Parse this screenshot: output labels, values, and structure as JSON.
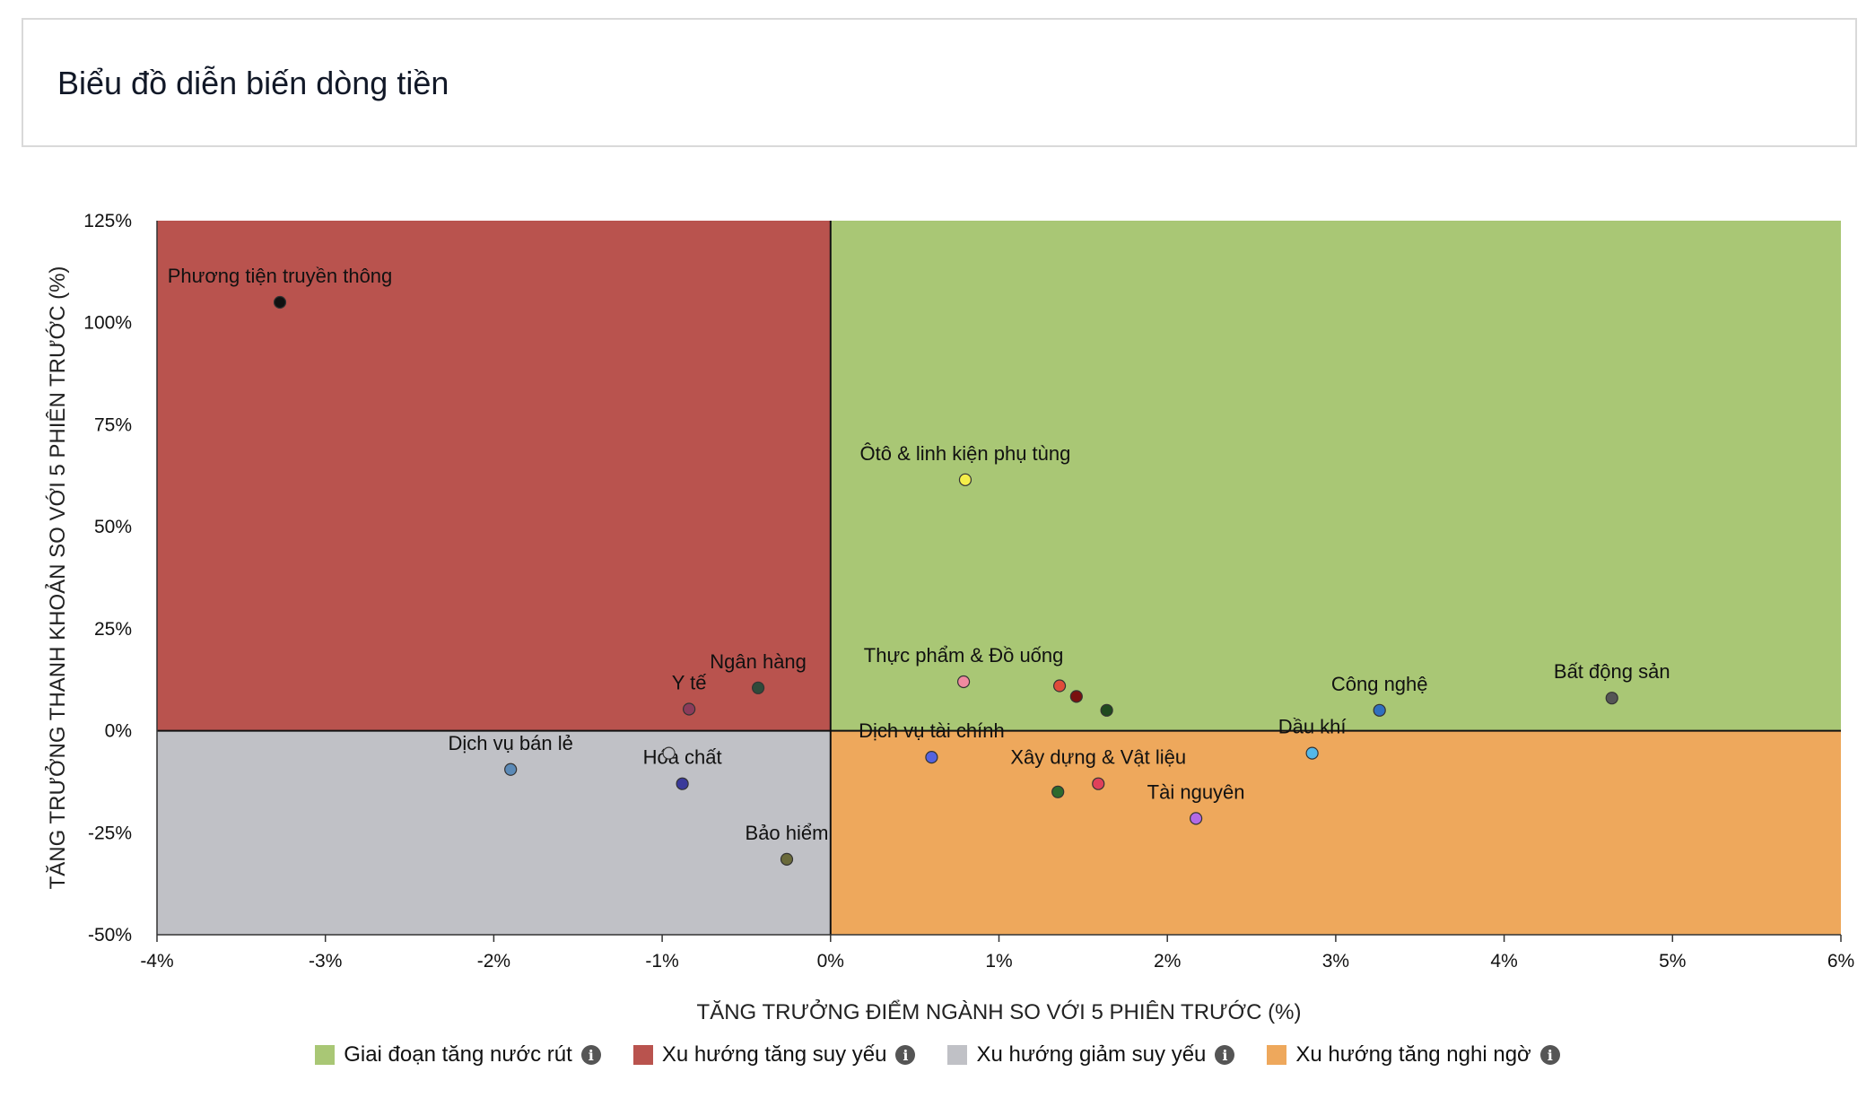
{
  "header": {
    "title": "Biểu đồ diễn biến dòng tiền"
  },
  "chart_data": {
    "type": "scatter",
    "title": "",
    "xlabel": "TĂNG TRƯỞNG ĐIỂM NGÀNH SO VỚI 5 PHIÊN TRƯỚC (%)",
    "ylabel": "TĂNG TRƯỞNG THANH KHOẢN SO VỚI 5 PHIÊN TRƯỚC (%)",
    "xlim": [
      -4,
      6
    ],
    "ylim": [
      -50,
      125
    ],
    "x_ticks": [
      -4,
      -3,
      -2,
      -1,
      0,
      1,
      2,
      3,
      4,
      5,
      6
    ],
    "y_ticks": [
      -50,
      -25,
      0,
      25,
      50,
      75,
      100,
      125
    ],
    "x_tick_labels": [
      "-4%",
      "-3%",
      "-2%",
      "-1%",
      "0%",
      "1%",
      "2%",
      "3%",
      "4%",
      "5%",
      "6%"
    ],
    "y_tick_labels": [
      "-50%",
      "-25%",
      "0%",
      "25%",
      "50%",
      "75%",
      "100%",
      "125%"
    ],
    "quadrants": [
      {
        "name": "Giai đoạn tăng nước rút",
        "region": "top-right",
        "color": "#a9c775"
      },
      {
        "name": "Xu hướng tăng suy yếu",
        "region": "top-left",
        "color": "#b9534e"
      },
      {
        "name": "Xu hướng giảm suy yếu",
        "region": "bottom-left",
        "color": "#c0c1c6"
      },
      {
        "name": "Xu hướng tăng nghi ngờ",
        "region": "bottom-right",
        "color": "#eea85c"
      }
    ],
    "points": [
      {
        "label": "Phương tiện truyền thông",
        "x": -3.27,
        "y": 105,
        "color": "#111111",
        "show_label": true
      },
      {
        "label": "Ôtô & linh kiện phụ tùng",
        "x": 0.8,
        "y": 61.5,
        "color": "#f4ee4a",
        "show_label": true
      },
      {
        "label": "Ngân hàng",
        "x": -0.43,
        "y": 10.5,
        "color": "#2f4a3a",
        "show_label": true
      },
      {
        "label": "Y tế",
        "x": -0.84,
        "y": 5.3,
        "color": "#8b3b5a",
        "show_label": true
      },
      {
        "label": "Dịch vụ bán lẻ",
        "x": -1.9,
        "y": -9.5,
        "color": "#5b8ab7",
        "show_label": true
      },
      {
        "label": "Hóa chất",
        "x": -0.88,
        "y": -13,
        "color": "#3a3a9a",
        "show_label": true
      },
      {
        "label": "",
        "x": -0.96,
        "y": -5.5,
        "color": "#c0c1c6",
        "show_label": false
      },
      {
        "label": "Bảo hiểm",
        "x": -0.26,
        "y": -31.5,
        "color": "#6a6a3a",
        "show_label": true
      },
      {
        "label": "Thực phẩm & Đồ uống",
        "x": 0.79,
        "y": 12,
        "color": "#f08aa0",
        "show_label": true
      },
      {
        "label": "",
        "x": 1.36,
        "y": 11,
        "color": "#e04b3a",
        "show_label": false
      },
      {
        "label": "",
        "x": 1.46,
        "y": 8.4,
        "color": "#7a1010",
        "show_label": false
      },
      {
        "label": "",
        "x": 1.64,
        "y": 5,
        "color": "#1f4a1f",
        "show_label": false
      },
      {
        "label": "Dịch vụ tài chính",
        "x": 0.6,
        "y": -6.5,
        "color": "#5563e0",
        "show_label": true
      },
      {
        "label": "Xây dựng & Vật liệu",
        "x": 1.59,
        "y": -13,
        "color": "#e0405a",
        "show_label": true
      },
      {
        "label": "",
        "x": 1.35,
        "y": -15,
        "color": "#2d6a2d",
        "show_label": false
      },
      {
        "label": "Tài nguyên",
        "x": 2.17,
        "y": -21.5,
        "color": "#b26ae6",
        "show_label": true
      },
      {
        "label": "Dầu khí",
        "x": 2.86,
        "y": -5.5,
        "color": "#55b8e8",
        "show_label": true
      },
      {
        "label": "Công nghệ",
        "x": 3.26,
        "y": 5,
        "color": "#2f6fbf",
        "show_label": true
      },
      {
        "label": "Bất động sản",
        "x": 4.64,
        "y": 8,
        "color": "#555555",
        "show_label": true
      }
    ],
    "legend_position": "bottom-center",
    "grid": false
  },
  "legend": {
    "items": [
      {
        "label": "Giai đoạn tăng nước rút",
        "color": "#a9c775"
      },
      {
        "label": "Xu hướng tăng suy yếu",
        "color": "#b9534e"
      },
      {
        "label": "Xu hướng giảm suy yếu",
        "color": "#c0c1c6"
      },
      {
        "label": "Xu hướng tăng nghi ngờ",
        "color": "#eea85c"
      }
    ],
    "info_glyph": "i"
  }
}
